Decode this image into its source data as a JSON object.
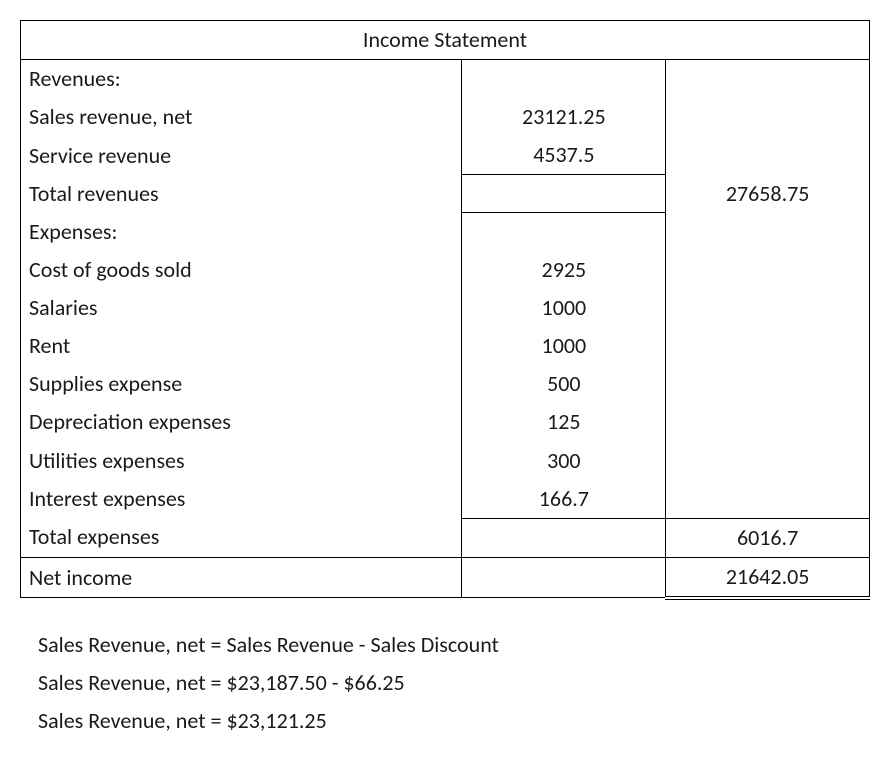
{
  "table": {
    "title": "Income Statement",
    "rows": [
      {
        "label": "Revenues:",
        "col2": "",
        "col3": ""
      },
      {
        "label": "Sales revenue, net",
        "col2": "23121.25",
        "col3": ""
      },
      {
        "label": "Service revenue",
        "col2": "4537.5",
        "col3": ""
      },
      {
        "label": "Total revenues",
        "col2": "",
        "col3": "27658.75"
      },
      {
        "label": "Expenses:",
        "col2": "",
        "col3": ""
      },
      {
        "label": "Cost of goods sold",
        "col2": "2925",
        "col3": ""
      },
      {
        "label": "Salaries",
        "col2": "1000",
        "col3": ""
      },
      {
        "label": "Rent",
        "col2": "1000",
        "col3": ""
      },
      {
        "label": "Supplies expense",
        "col2": "500",
        "col3": ""
      },
      {
        "label": "Depreciation expenses",
        "col2": "125",
        "col3": ""
      },
      {
        "label": "Utilities expenses",
        "col2": "300",
        "col3": ""
      },
      {
        "label": "Interest expenses",
        "col2": "166.7",
        "col3": ""
      },
      {
        "label": "Total expenses",
        "col2": "",
        "col3": "6016.7"
      },
      {
        "label": "Net income",
        "col2": "",
        "col3": "21642.05"
      }
    ],
    "style": {
      "font_family": "Calibri, Arial, sans-serif",
      "font_size_pt": 16,
      "text_color": "#1a1a1a",
      "border_color": "#000000",
      "background_color": "#ffffff",
      "col_widths_pct": [
        52,
        24,
        24
      ],
      "col2_align": "center",
      "col3_align": "center"
    }
  },
  "notes": {
    "lines": [
      "Sales Revenue, net = Sales Revenue - Sales Discount",
      "Sales Revenue, net = $23,187.50 - $66.25",
      "Sales Revenue, net = $23,121.25"
    ]
  }
}
